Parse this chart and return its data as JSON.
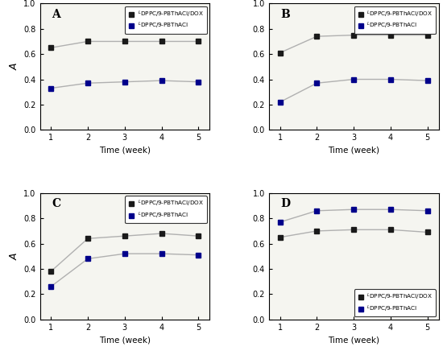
{
  "weeks": [
    1,
    2,
    3,
    4,
    5
  ],
  "panels": {
    "A": {
      "label": "A",
      "dox": [
        0.65,
        0.7,
        0.7,
        0.7,
        0.7
      ],
      "nodox": [
        0.33,
        0.37,
        0.38,
        0.39,
        0.38
      ],
      "legend_loc": "upper right"
    },
    "B": {
      "label": "B",
      "dox": [
        0.61,
        0.74,
        0.75,
        0.75,
        0.75
      ],
      "nodox": [
        0.22,
        0.37,
        0.4,
        0.4,
        0.39
      ],
      "legend_loc": "upper right"
    },
    "C": {
      "label": "C",
      "dox": [
        0.38,
        0.64,
        0.66,
        0.68,
        0.66
      ],
      "nodox": [
        0.26,
        0.48,
        0.52,
        0.52,
        0.51
      ],
      "legend_loc": "upper right"
    },
    "D": {
      "label": "D",
      "dox": [
        0.65,
        0.7,
        0.71,
        0.71,
        0.69
      ],
      "nodox": [
        0.77,
        0.86,
        0.87,
        0.87,
        0.86
      ],
      "legend_loc": "lower right"
    }
  },
  "legend_dox": "$^{L}$DPPC/9-PBThACI/DOX",
  "legend_nodox": "$^{L}$DPPC/9-PBThACI",
  "xlabel": "Time (week)",
  "ylabel": "A",
  "ylim": [
    0.0,
    1.0
  ],
  "xlim": [
    0.7,
    5.3
  ],
  "color_dox": "#1a1a1a",
  "color_nodox": "#00008B",
  "line_color": "#b0b0b0",
  "marker_size": 4.5,
  "line_width": 1.0,
  "bg_color": "#f5f5f0"
}
